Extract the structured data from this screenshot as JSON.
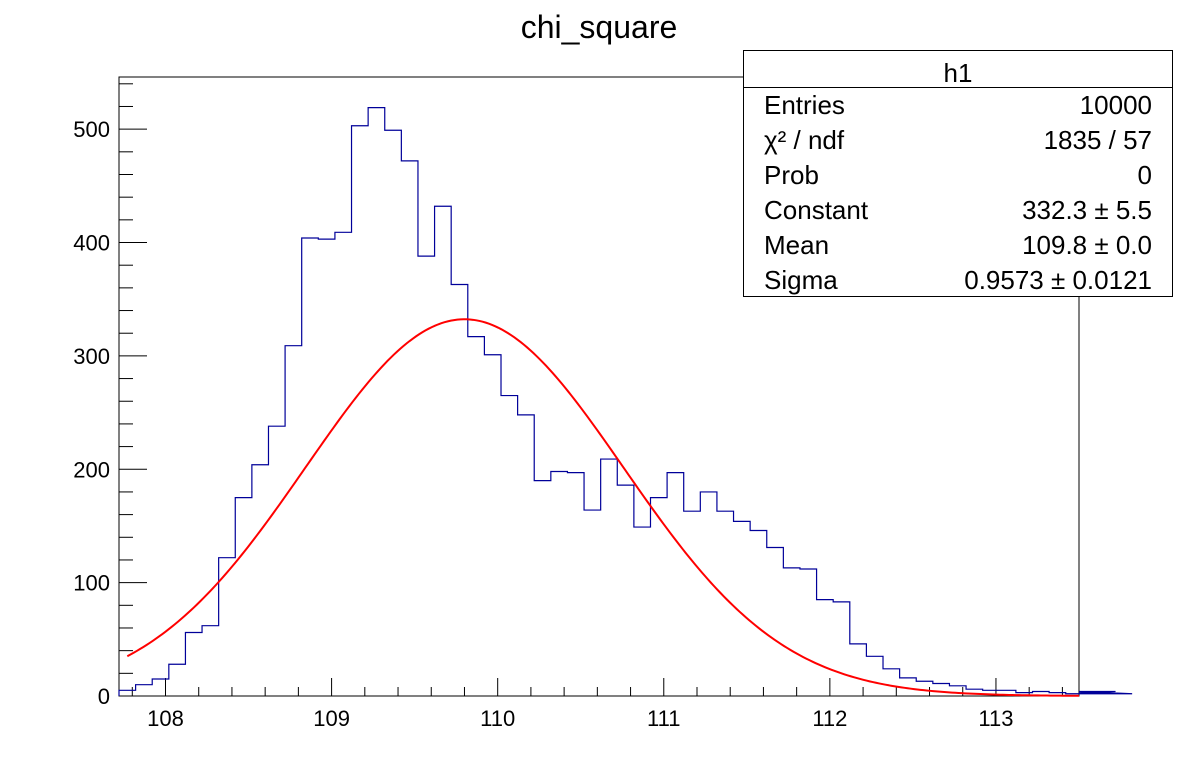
{
  "chart_data": {
    "type": "bar",
    "title": "chi_square",
    "xlabel": "",
    "ylabel": "",
    "xlim": [
      107.72,
      113.5
    ],
    "ylim": [
      0,
      546
    ],
    "xticks": [
      108,
      109,
      110,
      111,
      112,
      113
    ],
    "yticks": [
      0,
      100,
      200,
      300,
      400,
      500
    ],
    "bin_width": 0.1,
    "bin_edges_start": 107.72,
    "series": [
      {
        "style": "step",
        "color": "#000099",
        "values": [
          5,
          10,
          15,
          28,
          56,
          62,
          122,
          175,
          204,
          238,
          309,
          404,
          403,
          409,
          503,
          519,
          499,
          472,
          388,
          432,
          363,
          317,
          301,
          265,
          248,
          190,
          198,
          197,
          164,
          209,
          186,
          149,
          175,
          197,
          163,
          180,
          163,
          154,
          146,
          131,
          113,
          112,
          85,
          83,
          46,
          35,
          24,
          16,
          13,
          11,
          9,
          6,
          5,
          5,
          3,
          4,
          3,
          2,
          3,
          2,
          4,
          2
        ]
      },
      {
        "style": "gaussian-fit",
        "color": "#ff0000",
        "constant": 332.3,
        "mean": 109.8,
        "sigma": 0.9573
      }
    ],
    "grid": false,
    "legend_placement": "top-right"
  },
  "stats": {
    "title": "h1",
    "rows": [
      {
        "key": "Entries",
        "value": "10000"
      },
      {
        "key": "χ² / ndf",
        "value": "1835 / 57"
      },
      {
        "key": "Prob",
        "value": "0"
      },
      {
        "key": "Constant",
        "value": "332.3 ± 5.5"
      },
      {
        "key": "Mean",
        "value": "109.8 ± 0.0"
      },
      {
        "key": "Sigma",
        "value": "0.9573 ± 0.0121"
      }
    ]
  }
}
